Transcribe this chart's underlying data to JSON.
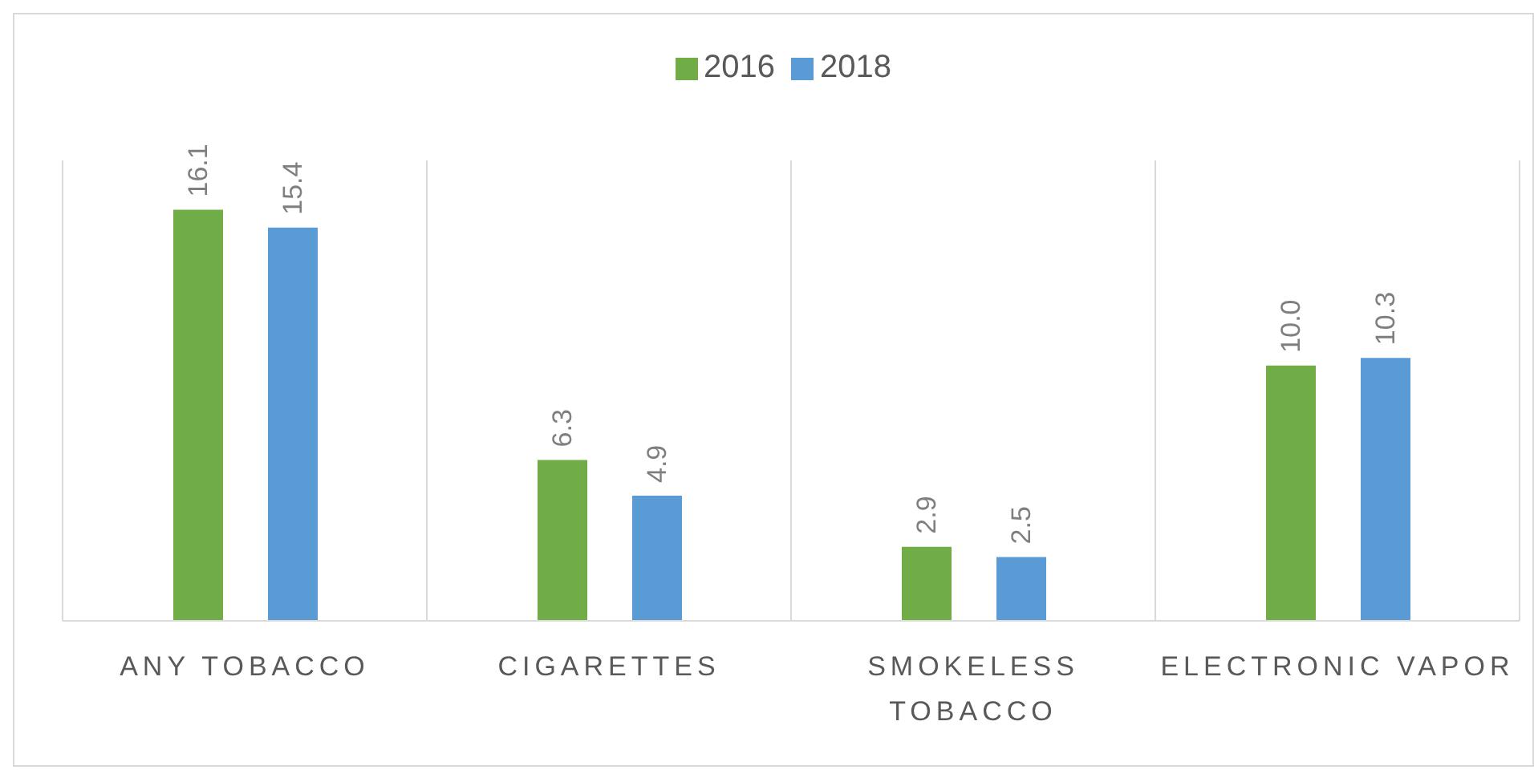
{
  "chart_data": {
    "type": "bar",
    "categories": [
      "ANY TOBACCO",
      "CIGARETTES",
      "SMOKELESS TOBACCO",
      "ELECTRONIC VAPOR"
    ],
    "series": [
      {
        "name": "2016",
        "color": "#70ad47",
        "values": [
          16.1,
          6.3,
          2.9,
          10.0
        ],
        "value_labels": [
          "16.1",
          "6.3",
          "2.9",
          "10.0"
        ]
      },
      {
        "name": "2018",
        "color": "#5b9bd5",
        "values": [
          15.4,
          4.9,
          2.5,
          10.3
        ],
        "value_labels": [
          "15.4",
          "4.9",
          "2.5",
          "10.3"
        ]
      }
    ],
    "tick_labels": "x",
    "legend": "top",
    "grid": "x"
  }
}
